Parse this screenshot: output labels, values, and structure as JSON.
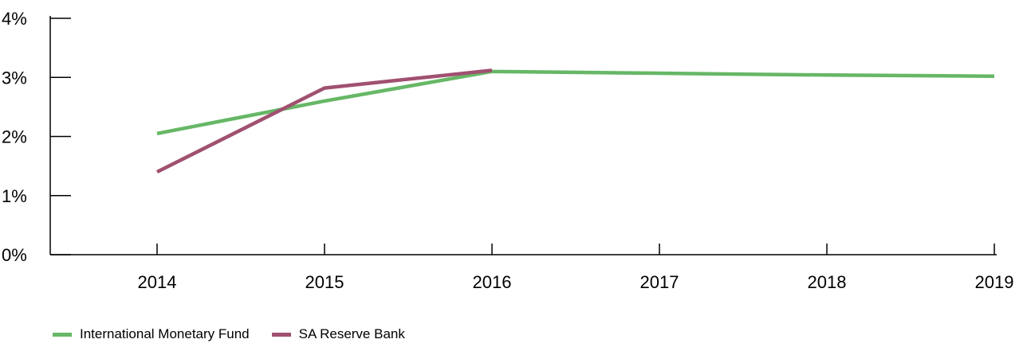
{
  "chart_data": {
    "type": "line",
    "x": [
      "2014",
      "2015",
      "2016",
      "2017",
      "2018",
      "2019"
    ],
    "ylim": [
      0,
      4
    ],
    "yticks": [
      "0%",
      "1%",
      "2%",
      "3%",
      "4%"
    ],
    "series": [
      {
        "name": "International Monetary Fund",
        "color": "#66b766",
        "values": [
          2.05,
          2.6,
          3.1,
          3.07,
          3.04,
          3.02
        ]
      },
      {
        "name": "SA Reserve Bank",
        "color": "#a05070",
        "values": [
          1.4,
          2.82,
          3.12,
          null,
          null,
          null
        ]
      }
    ],
    "grid": false,
    "legend_position": "bottom-left"
  }
}
